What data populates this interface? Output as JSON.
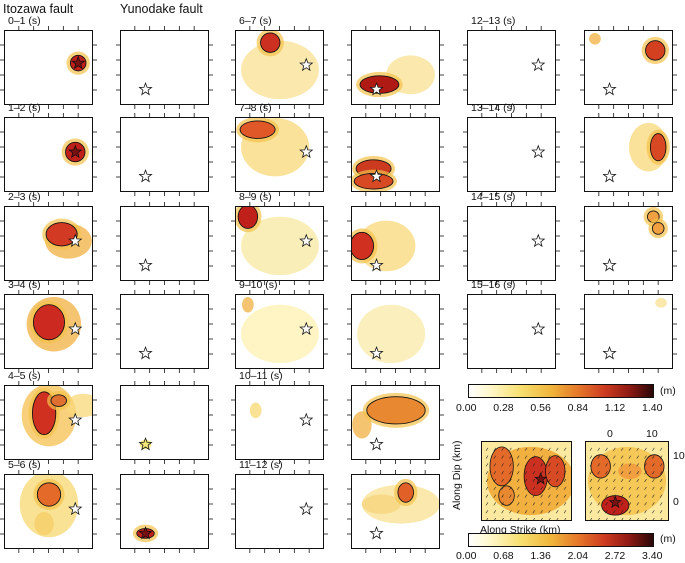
{
  "headers": {
    "itozawa": "Itozawa fault",
    "yunodake": "Yunodake fault"
  },
  "time_windows": [
    {
      "label": "0–1 (s)"
    },
    {
      "label": "1–2 (s)"
    },
    {
      "label": "2–3 (s)"
    },
    {
      "label": "3–4 (s)"
    },
    {
      "label": "4–5 (s)"
    },
    {
      "label": "5–6 (s)"
    },
    {
      "label": "6–7 (s)"
    },
    {
      "label": "7–8 (s)"
    },
    {
      "label": "8–9 (s)"
    },
    {
      "label": "9–10 (s)"
    },
    {
      "label": "10–11 (s)"
    },
    {
      "label": "11–12 (s)"
    },
    {
      "label": "12–13 (s)"
    },
    {
      "label": "13–14 (s)"
    },
    {
      "label": "14–15 (s)"
    },
    {
      "label": "15–16 (s)"
    }
  ],
  "colorbar_rate": {
    "unit": "(m)",
    "ticks": [
      "0.00",
      "0.28",
      "0.56",
      "0.84",
      "1.12",
      "1.40"
    ]
  },
  "colorbar_total": {
    "unit": "(m)",
    "ticks": [
      "0.00",
      "0.68",
      "1.36",
      "2.04",
      "2.72",
      "3.40"
    ]
  },
  "total_slip_axes": {
    "along_dip": "Along Dip (km)",
    "along_strike": "Along Strike (km)",
    "strike_ticks": [
      "0",
      "10"
    ],
    "dip_ticks": [
      "10",
      "0"
    ]
  },
  "colors": {
    "low": "#fffbe0",
    "mid": "#f2a630",
    "high": "#c0201a",
    "peak": "#3a0a0a"
  }
}
